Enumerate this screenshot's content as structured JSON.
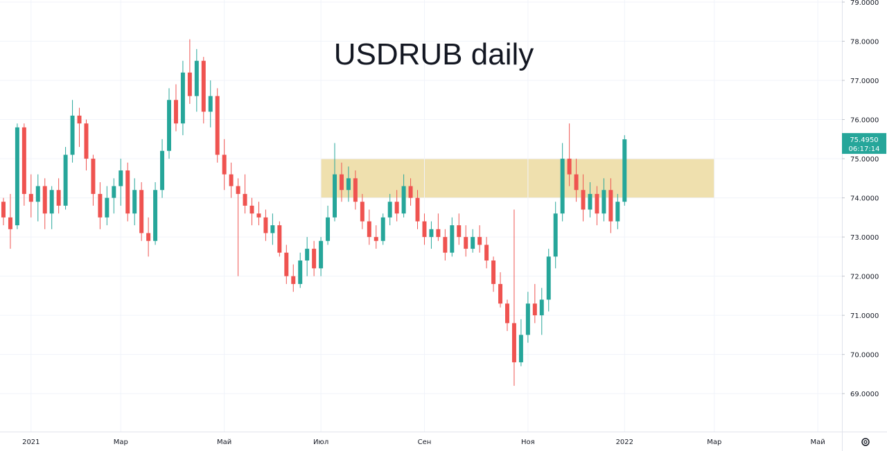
{
  "chart_data": {
    "type": "candlestick",
    "title": "USDRUB daily",
    "up_color": "#26a69a",
    "down_color": "#ef5350",
    "ylim": [
      68.03,
      79.053
    ],
    "yticks": [
      {
        "value": 69,
        "label": "69.0000"
      },
      {
        "value": 70,
        "label": "70.0000"
      },
      {
        "value": 71,
        "label": "71.0000"
      },
      {
        "value": 72,
        "label": "72.0000"
      },
      {
        "value": 73,
        "label": "73.0000"
      },
      {
        "value": 74,
        "label": "74.0000"
      },
      {
        "value": 75,
        "label": "75.0000"
      },
      {
        "value": 76,
        "label": "76.0000"
      },
      {
        "value": 77,
        "label": "77.0000"
      },
      {
        "value": 78,
        "label": "78.0000"
      },
      {
        "value": 79,
        "label": "79.0000"
      }
    ],
    "grid": true,
    "zone": {
      "low": 74,
      "high": 75,
      "color": "#efe0ae"
    },
    "last_price": {
      "value": 75.495,
      "label": "75.4950"
    },
    "countdown": "06:17:14",
    "categories": [
      null,
      null,
      null,
      null,
      "2021",
      null,
      null,
      null,
      null,
      null,
      null,
      null,
      null,
      null,
      null,
      null,
      null,
      "Мар",
      null,
      null,
      null,
      null,
      null,
      null,
      null,
      null,
      null,
      null,
      null,
      null,
      null,
      null,
      "Май",
      null,
      null,
      null,
      null,
      null,
      null,
      null,
      null,
      null,
      null,
      null,
      null,
      null,
      "Июл",
      null,
      null,
      null,
      null,
      null,
      null,
      null,
      null,
      null,
      null,
      null,
      null,
      null,
      null,
      "Сен",
      null,
      null,
      null,
      null,
      null,
      null,
      null,
      null,
      null,
      null,
      null,
      null,
      null,
      null,
      "Ноя",
      null,
      null,
      null,
      null,
      null,
      null,
      null,
      null,
      null,
      null,
      null,
      null,
      null,
      "2022",
      null,
      null,
      null,
      null,
      null,
      null,
      null,
      null,
      null,
      null,
      null,
      null,
      "Мар",
      null,
      null,
      null,
      null,
      null,
      null,
      null,
      null,
      null,
      null,
      null,
      null,
      null,
      null,
      "Май",
      null,
      null,
      null
    ],
    "open": [
      73.9,
      73.5,
      73.3,
      75.8,
      74.1,
      73.9,
      74.3,
      73.6,
      74.2,
      73.8,
      75.1,
      76.1,
      75.9,
      75.0,
      74.1,
      73.5,
      74.0,
      74.3,
      74.7,
      73.6,
      74.2,
      73.1,
      72.9,
      74.2,
      75.2,
      76.5,
      75.9,
      77.2,
      76.6,
      77.5,
      76.2,
      76.6,
      75.1,
      74.6,
      74.3,
      74.1,
      73.8,
      73.6,
      73.5,
      73.1,
      73.3,
      72.6,
      72.0,
      71.8,
      72.4,
      72.7,
      72.2,
      72.9,
      73.5,
      74.6,
      74.2,
      74.5,
      73.9,
      73.4,
      73.0,
      72.9,
      73.5,
      73.9,
      73.6,
      74.3,
      74.0,
      73.4,
      73.0,
      73.2,
      73.0,
      72.6,
      73.3,
      73.0,
      72.7,
      73.0,
      72.8,
      72.4,
      71.8,
      71.3,
      70.8,
      69.8,
      70.5,
      71.3,
      71.0,
      71.4,
      72.5,
      73.6,
      75.0,
      74.6,
      74.2,
      73.7,
      74.1,
      73.6,
      74.2,
      73.4,
      73.9,
      null,
      null,
      null,
      null,
      null,
      null,
      null,
      null,
      null,
      null,
      null,
      null,
      null,
      null,
      null,
      null,
      null,
      null,
      null,
      null,
      null,
      null,
      null,
      null,
      null,
      null,
      null,
      null,
      null,
      null,
      null
    ],
    "high": [
      74.0,
      74.1,
      75.9,
      75.9,
      74.6,
      74.6,
      74.5,
      74.3,
      74.5,
      75.3,
      76.5,
      76.3,
      76.0,
      75.1,
      74.4,
      74.3,
      74.5,
      75.0,
      74.9,
      74.5,
      74.4,
      73.5,
      74.4,
      75.5,
      76.8,
      76.9,
      77.5,
      78.05,
      77.8,
      77.6,
      77.0,
      76.8,
      75.5,
      74.9,
      74.5,
      74.6,
      74.0,
      73.9,
      73.7,
      73.6,
      73.4,
      72.8,
      72.3,
      72.6,
      73.0,
      72.9,
      73.0,
      73.8,
      75.4,
      74.9,
      74.8,
      74.7,
      74.1,
      73.7,
      73.3,
      73.6,
      74.1,
      74.2,
      74.6,
      74.5,
      74.2,
      73.6,
      73.4,
      73.6,
      73.2,
      73.5,
      73.6,
      73.3,
      73.2,
      73.3,
      73.0,
      72.5,
      72.1,
      71.4,
      73.7,
      70.9,
      71.6,
      71.8,
      71.7,
      72.7,
      73.9,
      75.4,
      75.9,
      75.0,
      74.6,
      74.4,
      74.3,
      74.5,
      74.5,
      74.1,
      75.6,
      null,
      null,
      null,
      null,
      null,
      null,
      null,
      null,
      null,
      null,
      null,
      null,
      null,
      null,
      null,
      null,
      null,
      null,
      null,
      null,
      null,
      null,
      null,
      null,
      null,
      null,
      null,
      null,
      null,
      null,
      null
    ],
    "low": [
      73.3,
      72.7,
      73.2,
      73.8,
      73.5,
      73.4,
      73.2,
      73.2,
      73.6,
      73.7,
      74.9,
      75.3,
      74.7,
      73.8,
      73.2,
      73.3,
      73.6,
      73.8,
      73.4,
      73.3,
      72.9,
      72.5,
      72.8,
      74.0,
      75.0,
      75.7,
      75.6,
      76.4,
      76.2,
      75.9,
      75.8,
      74.9,
      74.2,
      74.0,
      72.0,
      73.6,
      73.3,
      73.3,
      72.9,
      72.8,
      72.5,
      71.8,
      71.6,
      71.7,
      72.0,
      72.0,
      72.0,
      72.8,
      73.4,
      73.9,
      73.9,
      73.7,
      73.2,
      72.8,
      72.7,
      72.8,
      73.3,
      73.4,
      73.5,
      73.8,
      73.2,
      72.8,
      72.7,
      72.9,
      72.4,
      72.5,
      72.8,
      72.5,
      72.6,
      72.6,
      72.2,
      71.6,
      71.2,
      70.6,
      69.2,
      69.7,
      70.3,
      70.8,
      70.5,
      71.1,
      72.2,
      73.4,
      74.3,
      73.9,
      73.4,
      73.5,
      73.3,
      73.4,
      73.1,
      73.2,
      73.8,
      null,
      null,
      null,
      null,
      null,
      null,
      null,
      null,
      null,
      null,
      null,
      null,
      null,
      null,
      null,
      null,
      null,
      null,
      null,
      null,
      null,
      null,
      null,
      null,
      null,
      null,
      null,
      null,
      null,
      null,
      null
    ],
    "close": [
      73.5,
      73.2,
      75.8,
      74.1,
      73.9,
      74.3,
      73.6,
      74.2,
      73.8,
      75.1,
      76.1,
      75.9,
      75.0,
      74.1,
      73.5,
      74.0,
      74.3,
      74.7,
      73.6,
      74.2,
      73.1,
      72.9,
      74.2,
      75.2,
      76.5,
      75.9,
      77.2,
      76.6,
      77.5,
      76.2,
      76.6,
      75.1,
      74.6,
      74.3,
      74.1,
      73.8,
      73.6,
      73.5,
      73.1,
      73.3,
      72.6,
      72.0,
      71.8,
      72.4,
      72.7,
      72.2,
      72.9,
      73.5,
      74.6,
      74.2,
      74.5,
      73.9,
      73.4,
      73.0,
      72.9,
      73.5,
      73.9,
      73.6,
      74.3,
      74.0,
      73.4,
      73.0,
      73.2,
      73.0,
      72.6,
      73.3,
      73.0,
      72.7,
      73.0,
      72.8,
      72.4,
      71.8,
      71.3,
      70.8,
      69.8,
      70.5,
      71.3,
      71.0,
      71.4,
      72.5,
      73.6,
      75.0,
      74.6,
      74.2,
      73.7,
      74.1,
      73.6,
      74.2,
      73.4,
      73.9,
      75.495,
      null,
      null,
      null,
      null,
      null,
      null,
      null,
      null,
      null,
      null,
      null,
      null,
      null,
      null,
      null,
      null,
      null,
      null,
      null,
      null,
      null,
      null,
      null,
      null,
      null,
      null,
      null,
      null,
      null,
      null,
      null
    ]
  }
}
